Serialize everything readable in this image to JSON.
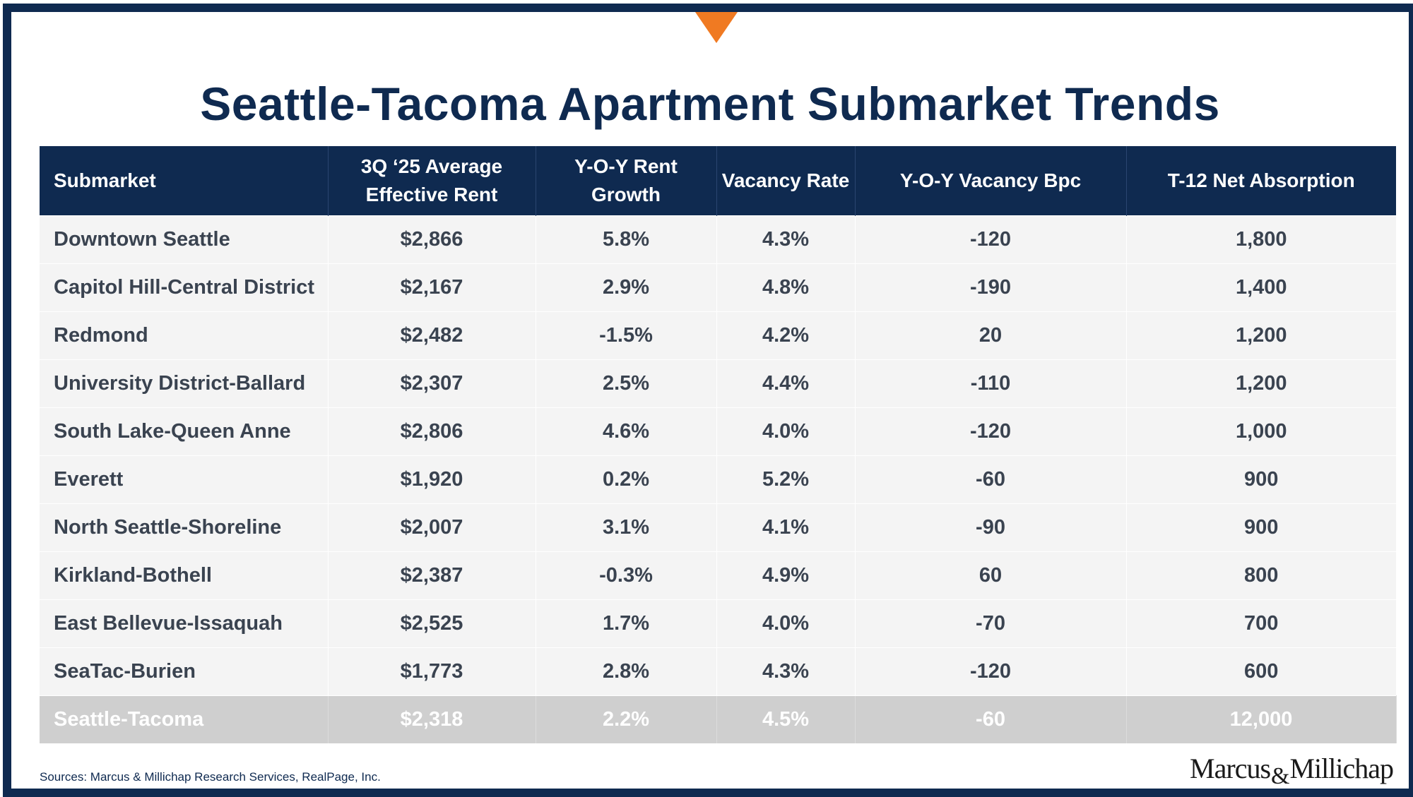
{
  "title": "Seattle-Tacoma Apartment Submarket Trends",
  "chart_data": {
    "type": "table",
    "columns": [
      [
        "Submarket"
      ],
      [
        "3Q ‘25 Average",
        "Effective Rent"
      ],
      [
        "Y-O-Y Rent",
        "Growth"
      ],
      [
        "Vacancy Rate"
      ],
      [
        "Y-O-Y Vacancy Bpc"
      ],
      [
        "T-12 Net Absorption"
      ]
    ],
    "rows": [
      [
        "Downtown Seattle",
        "$2,866",
        "5.8%",
        "4.3%",
        "-120",
        "1,800"
      ],
      [
        "Capitol Hill-Central District",
        "$2,167",
        "2.9%",
        "4.8%",
        "-190",
        "1,400"
      ],
      [
        "Redmond",
        "$2,482",
        "-1.5%",
        "4.2%",
        "20",
        "1,200"
      ],
      [
        "University District-Ballard",
        "$2,307",
        "2.5%",
        "4.4%",
        "-110",
        "1,200"
      ],
      [
        "South Lake-Queen Anne",
        "$2,806",
        "4.6%",
        "4.0%",
        "-120",
        "1,000"
      ],
      [
        "Everett",
        "$1,920",
        "0.2%",
        "5.2%",
        "-60",
        "900"
      ],
      [
        "North Seattle-Shoreline",
        "$2,007",
        "3.1%",
        "4.1%",
        "-90",
        "900"
      ],
      [
        "Kirkland-Bothell",
        "$2,387",
        "-0.3%",
        "4.9%",
        "60",
        "800"
      ],
      [
        "East Bellevue-Issaquah",
        "$2,525",
        "1.7%",
        "4.0%",
        "-70",
        "700"
      ],
      [
        "SeaTac-Burien",
        "$1,773",
        "2.8%",
        "4.3%",
        "-120",
        "600"
      ]
    ],
    "total": [
      "Seattle-Tacoma",
      "$2,318",
      "2.2%",
      "4.5%",
      "-60",
      "12,000"
    ]
  },
  "footer": {
    "source": "Sources: Marcus & Millichap Research Services, RealPage, Inc.",
    "logo_left": "Marcus",
    "logo_amp": "&",
    "logo_right": "Millichap"
  },
  "colors": {
    "navy": "#0f2a50",
    "accent": "#f07a22",
    "row_bg": "#f4f4f4",
    "total_bg": "#cfcfcf"
  }
}
